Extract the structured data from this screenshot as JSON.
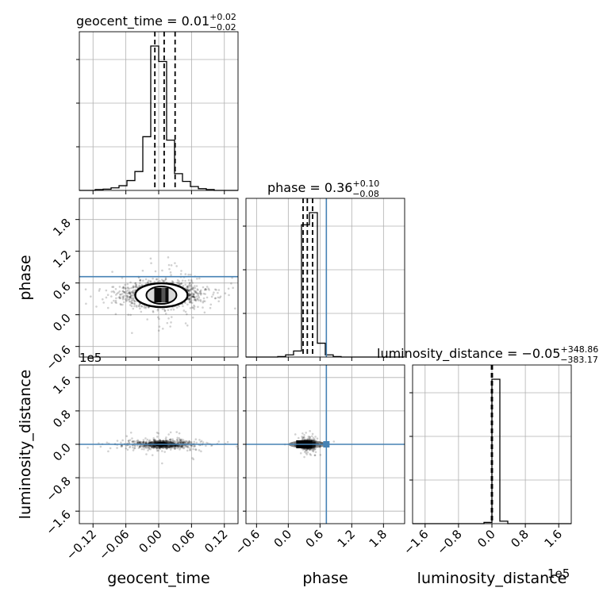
{
  "chart_data": {
    "type": "corner",
    "parameters": [
      "geocent_time",
      "phase",
      "luminosity_distance"
    ],
    "titles": [
      {
        "param": "geocent_time",
        "prefix": "geocent_time = ",
        "median": "0.01",
        "plus": "+0.02",
        "minus": "−0.02"
      },
      {
        "param": "phase",
        "prefix": "phase = ",
        "median": "0.36",
        "plus": "+0.10",
        "minus": "−0.08"
      },
      {
        "param": "luminosity_distance",
        "prefix": "luminosity_distance = ",
        "median": "−0.05",
        "plus": "+348.86",
        "minus": "−383.17"
      }
    ],
    "axis_labels": [
      "geocent_time",
      "phase",
      "luminosity_distance"
    ],
    "offset_texts": {
      "lum_y": "1e5",
      "lum_x": "1e5"
    },
    "xticks": {
      "geocent_time": [
        "−0.12",
        "−0.06",
        "0.00",
        "0.06",
        "0.12"
      ],
      "phase": [
        "−0.6",
        "0.0",
        "0.6",
        "1.2",
        "1.8"
      ],
      "luminosity_distance": [
        "−1.6",
        "−0.8",
        "0.0",
        "0.8",
        "1.6"
      ]
    },
    "yticks": {
      "phase": [
        "−0.6",
        "0.0",
        "0.6",
        "1.2",
        "1.8"
      ],
      "luminosity_distance": [
        "−1.6",
        "−0.8",
        "0.0",
        "0.8",
        "1.6"
      ]
    },
    "ranges": {
      "geocent_time": [
        -0.145,
        0.145
      ],
      "phase": [
        -0.8,
        2.2
      ],
      "luminosity_distance": [
        -1.9,
        1.9
      ]
    },
    "truths": {
      "phase": 0.72,
      "luminosity_distance": 0.0
    },
    "quantile_lines": {
      "geocent_time": [
        -0.007,
        0.01,
        0.03
      ],
      "phase": [
        0.28,
        0.36,
        0.46
      ],
      "luminosity_distance": [
        -0.01,
        0.0,
        0.01
      ]
    },
    "histograms": {
      "geocent_time": {
        "edges": [
          -0.145,
          -0.1305,
          -0.116,
          -0.1015,
          -0.087,
          -0.0725,
          -0.058,
          -0.0435,
          -0.029,
          -0.0145,
          0.0,
          0.0145,
          0.029,
          0.0435,
          0.058,
          0.0725,
          0.087,
          0.1015,
          0.116,
          0.1305,
          0.145
        ],
        "counts": [
          0,
          0,
          2,
          3,
          6,
          11,
          23,
          44,
          125,
          336,
          300,
          117,
          39,
          21,
          9,
          4,
          2,
          0,
          0,
          0
        ]
      },
      "phase": {
        "edges": [
          -0.8,
          -0.65,
          -0.5,
          -0.35,
          -0.2,
          -0.05,
          0.1,
          0.25,
          0.4,
          0.55,
          0.7,
          0.85,
          1.0,
          1.15,
          1.3,
          1.45,
          1.6,
          1.75,
          1.9,
          2.05,
          2.2
        ],
        "counts": [
          0,
          0,
          0,
          0,
          1,
          5,
          14,
          306,
          334,
          32,
          5,
          1,
          0,
          0,
          0,
          0,
          0,
          0,
          0,
          0
        ]
      },
      "luminosity_distance": {
        "edges": [
          -1.9,
          -1.71,
          -1.52,
          -1.33,
          -1.14,
          -0.95,
          -0.76,
          -0.57,
          -0.38,
          -0.19,
          0.0,
          0.19,
          0.38,
          0.57,
          0.76,
          0.95,
          1.14,
          1.33,
          1.52,
          1.71,
          1.9
        ],
        "counts": [
          0,
          0,
          0,
          0,
          0,
          0,
          0,
          0,
          0,
          3,
          353,
          6,
          0,
          0,
          0,
          0,
          0,
          0,
          0,
          0
        ]
      }
    },
    "grid": true
  }
}
